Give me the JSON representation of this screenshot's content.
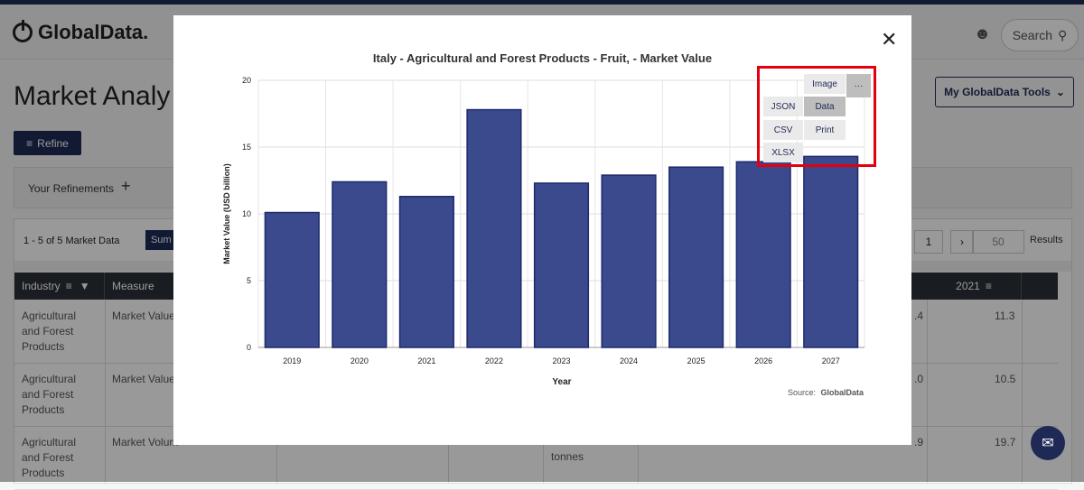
{
  "header": {
    "logo_text": "GlobalData.",
    "search_label": "Search"
  },
  "page": {
    "title": "Market Analy",
    "refine_label": "Refine",
    "tools_label": "My GlobalData Tools",
    "refinements_label": "Your Refinements"
  },
  "table": {
    "count_label": "1 - 5 of 5 Market Data",
    "sum_label": "Sum",
    "page_number": "1",
    "page_size": "50",
    "results_label": "Results",
    "headers": {
      "industry": "Industry",
      "measure": "Measure",
      "year_2021": "2021"
    },
    "rows": [
      {
        "industry": "Agricultural and Forest Products",
        "measure": "Market Value",
        "partial": ".4",
        "v2021": "11.3"
      },
      {
        "industry": "Agricultural and Forest Products",
        "measure": "Market Value",
        "partial": ".0",
        "v2021": "10.5"
      },
      {
        "industry": "Agricultural and Forest Products",
        "measure": "Market Volum",
        "partial": ".9",
        "v2021": "19.7",
        "unit": "tonnes"
      }
    ]
  },
  "modal": {
    "close_label": "✕",
    "menu": {
      "image": "Image",
      "more": "···",
      "json": "JSON",
      "data": "Data",
      "csv": "CSV",
      "print": "Print",
      "xlsx": "XLSX"
    },
    "source_prefix": "Source:",
    "source_name": "GlobalData"
  },
  "chart_data": {
    "type": "bar",
    "title": "Italy - Agricultural and Forest Products - Fruit, - Market Value",
    "xlabel": "Year",
    "ylabel": "Market Value (USD billion)",
    "categories": [
      "2019",
      "2020",
      "2021",
      "2022",
      "2023",
      "2024",
      "2025",
      "2026",
      "2027"
    ],
    "values": [
      10.1,
      12.4,
      11.3,
      17.8,
      12.3,
      12.9,
      13.5,
      13.9,
      14.3
    ],
    "ylim": [
      0,
      20
    ],
    "yticks": [
      0,
      5,
      10,
      15,
      20
    ],
    "grid": true,
    "bar_color": "#3a4a8c",
    "bar_border": "#1e2a6e"
  },
  "colors": {
    "brand": "#1e2a55",
    "highlight": "#e3000f"
  }
}
